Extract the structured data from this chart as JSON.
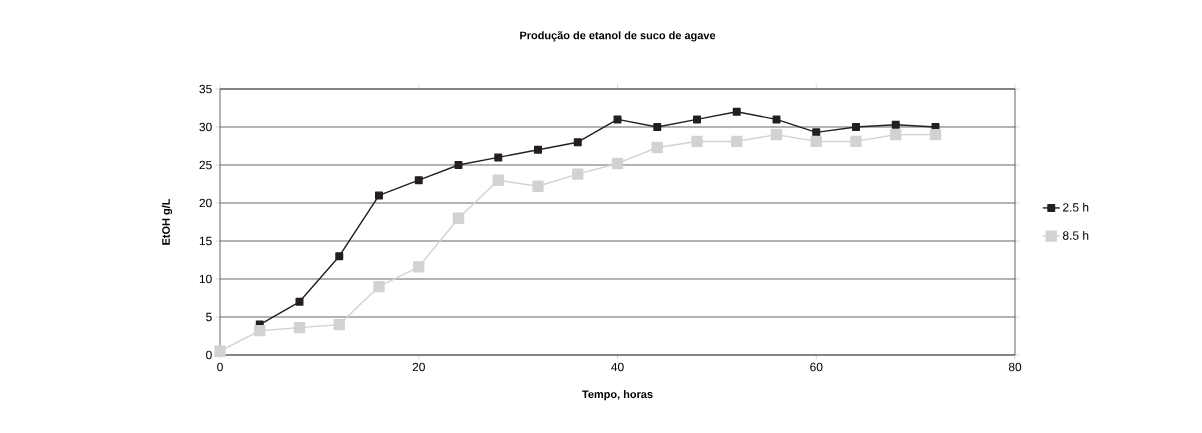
{
  "chart_data": {
    "type": "line",
    "title": "Produção de etanol de suco de agave",
    "xlabel": "Tempo, horas",
    "ylabel": "EtOH g/L",
    "x": [
      0,
      4,
      8,
      12,
      16,
      20,
      24,
      28,
      32,
      36,
      40,
      44,
      48,
      52,
      56,
      60,
      64,
      68,
      72
    ],
    "series": [
      {
        "name": "2.5 h",
        "color": "#231f20",
        "values": [
          null,
          4,
          7,
          13,
          21,
          23,
          25,
          26,
          27,
          28,
          31,
          30,
          31,
          32,
          31,
          29.3,
          30,
          30.3,
          30
        ]
      },
      {
        "name": "8.5 h",
        "color": "#d1d2d4",
        "values": [
          0.5,
          3.2,
          3.6,
          4,
          9,
          11.6,
          18,
          23,
          22.2,
          23.8,
          25.2,
          27.3,
          28.1,
          28.1,
          29,
          28.1,
          28.1,
          29,
          29
        ]
      }
    ],
    "xlim": [
      0,
      80
    ],
    "xticks": [
      0,
      20,
      40,
      60,
      80
    ],
    "ylim": [
      0,
      35
    ],
    "yticks": [
      0,
      5,
      10,
      15,
      20,
      25,
      30,
      35
    ],
    "grid": "y",
    "legend": "right",
    "marker": "square",
    "line_style": "solid"
  }
}
